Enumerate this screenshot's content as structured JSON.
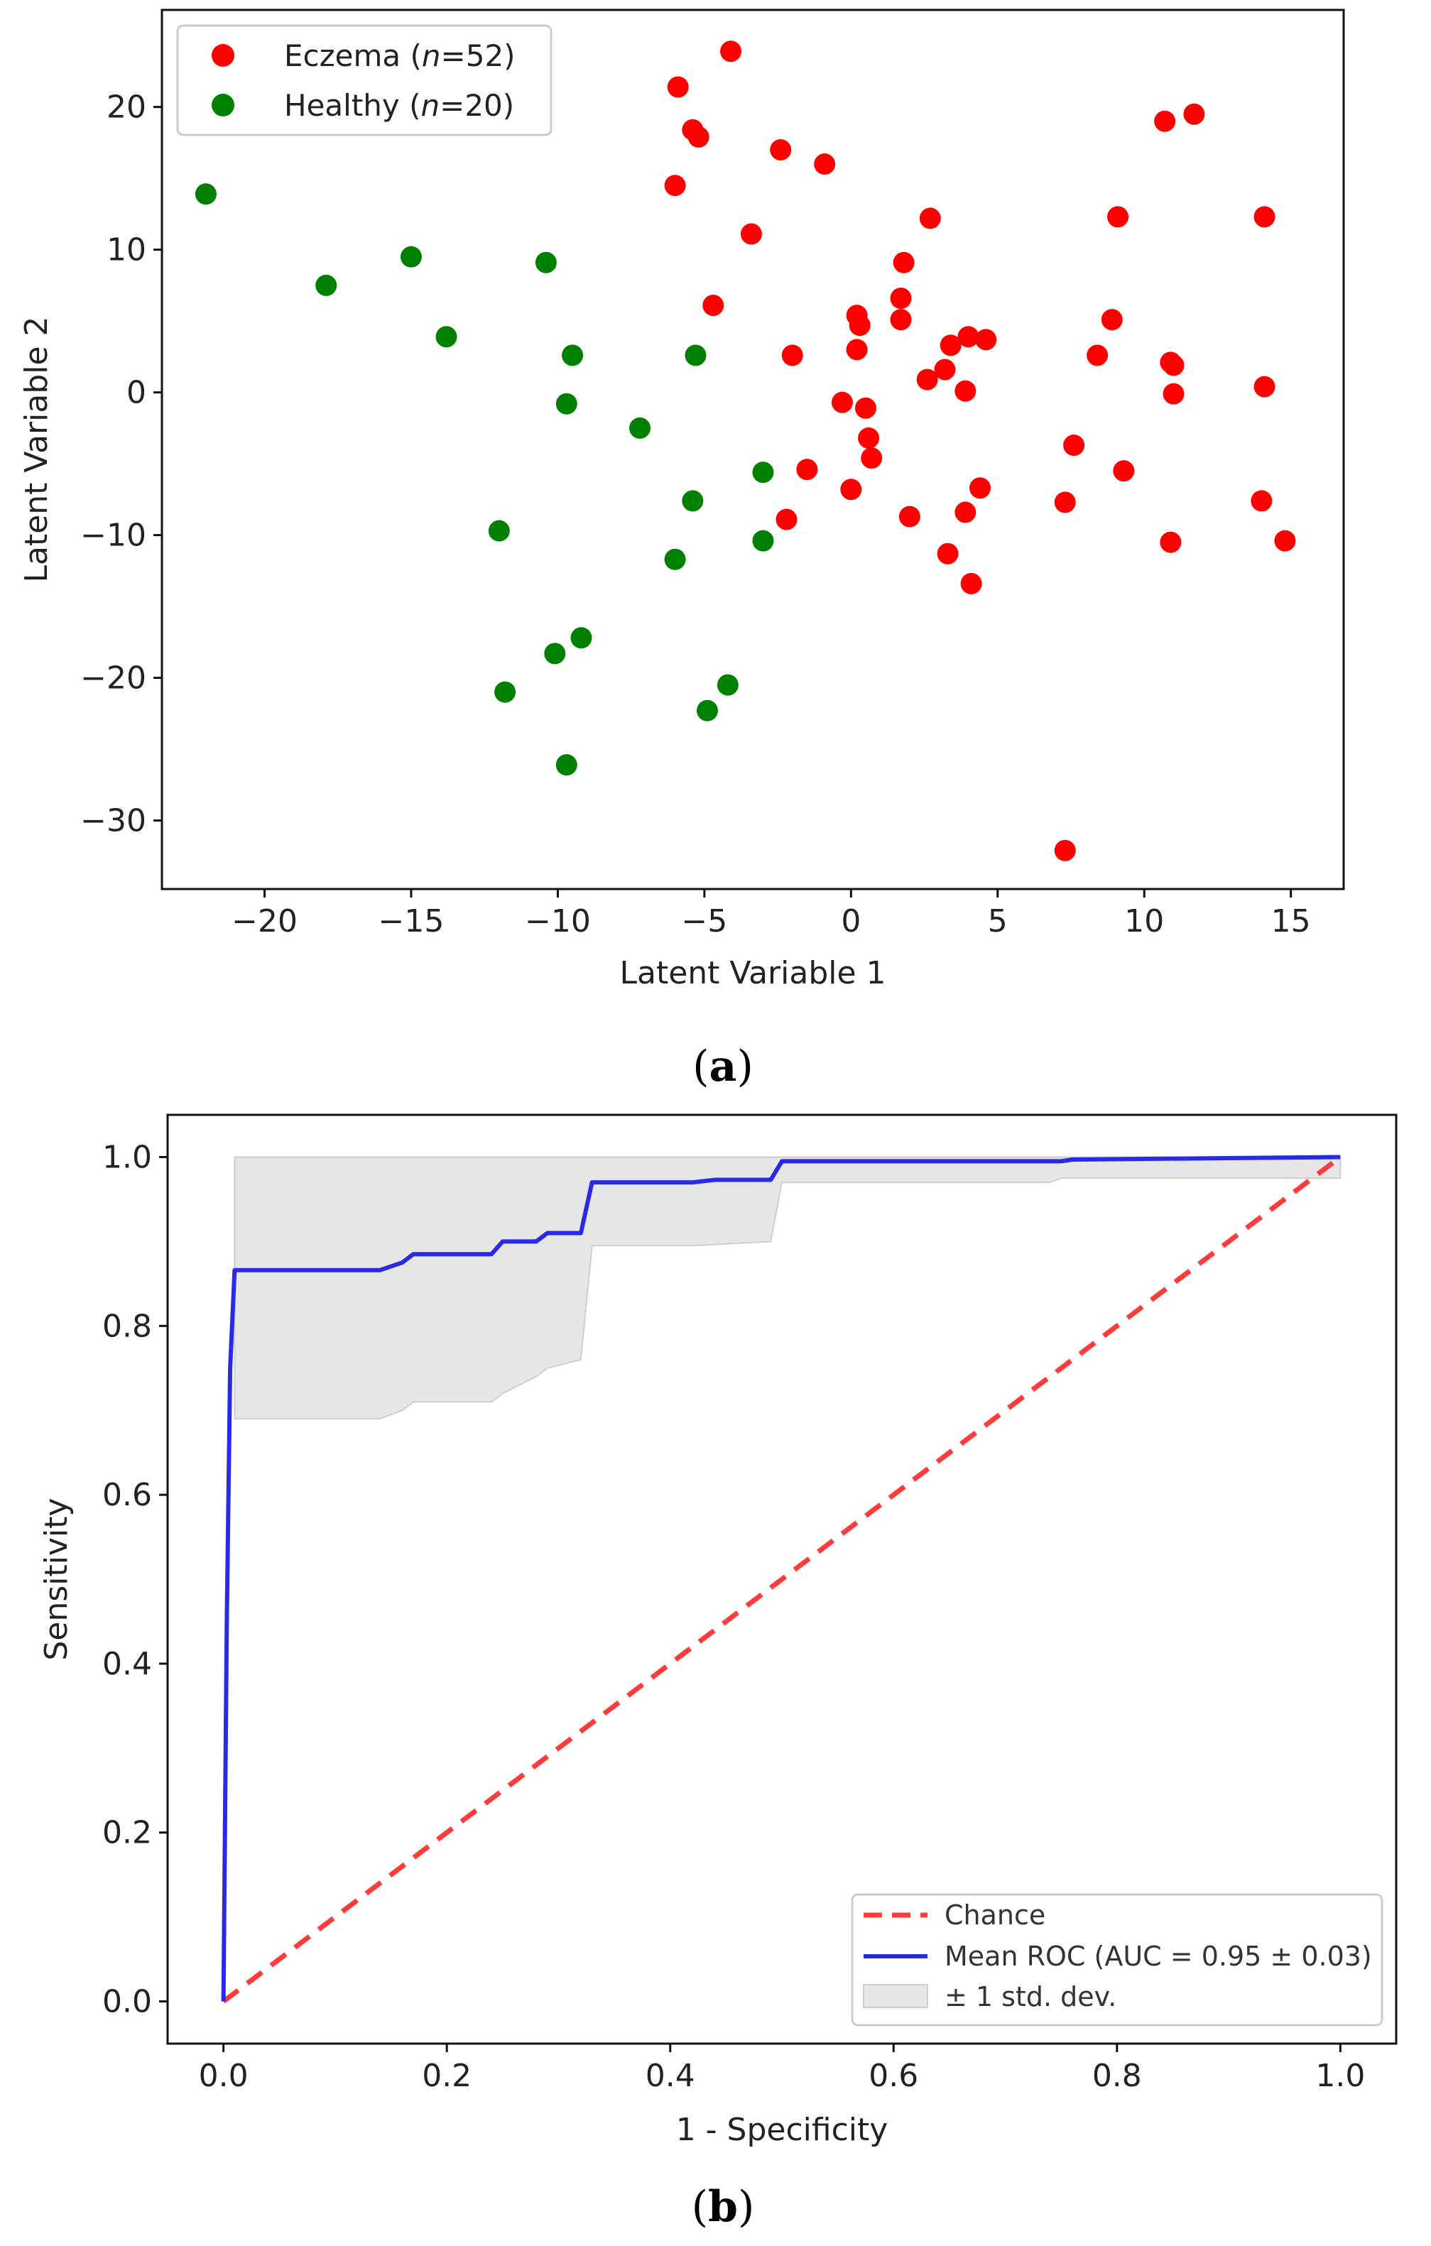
{
  "chart_data": [
    {
      "type": "scatter",
      "caption_letter": "a",
      "xlabel": "Latent Variable 1",
      "ylabel": "Latent Variable 2",
      "xlim": [
        -23.5,
        16.8
      ],
      "ylim": [
        -34.8,
        26.8
      ],
      "xticks": [
        -20,
        -15,
        -10,
        -5,
        0,
        5,
        10,
        15
      ],
      "yticks": [
        20,
        10,
        0,
        -10,
        -20,
        -30
      ],
      "legend_position": "top-left",
      "series": [
        {
          "name": "Eczema",
          "n_label": "n",
          "n_value": "=52",
          "color": "#ff0000",
          "points": [
            [
              -4.1,
              23.9
            ],
            [
              -5.9,
              21.4
            ],
            [
              -5.4,
              18.4
            ],
            [
              -5.2,
              17.9
            ],
            [
              -2.4,
              17.0
            ],
            [
              -0.9,
              16.0
            ],
            [
              -6.0,
              14.5
            ],
            [
              -3.4,
              11.1
            ],
            [
              -4.7,
              6.1
            ],
            [
              -2.0,
              2.6
            ],
            [
              2.7,
              12.2
            ],
            [
              1.8,
              9.1
            ],
            [
              1.7,
              6.6
            ],
            [
              0.2,
              5.4
            ],
            [
              0.3,
              4.7
            ],
            [
              1.7,
              5.1
            ],
            [
              3.4,
              3.3
            ],
            [
              4.0,
              3.9
            ],
            [
              4.6,
              3.7
            ],
            [
              0.2,
              3.0
            ],
            [
              3.2,
              1.6
            ],
            [
              2.6,
              0.9
            ],
            [
              3.9,
              0.1
            ],
            [
              -0.3,
              -0.7
            ],
            [
              0.5,
              -1.1
            ],
            [
              0.6,
              -3.2
            ],
            [
              0.7,
              -4.6
            ],
            [
              -1.5,
              -5.4
            ],
            [
              0.0,
              -6.8
            ],
            [
              -2.2,
              -8.9
            ],
            [
              2.0,
              -8.7
            ],
            [
              3.9,
              -8.4
            ],
            [
              4.4,
              -6.7
            ],
            [
              3.3,
              -11.3
            ],
            [
              4.1,
              -13.4
            ],
            [
              7.3,
              -7.7
            ],
            [
              7.6,
              -3.7
            ],
            [
              9.3,
              -5.5
            ],
            [
              8.4,
              2.6
            ],
            [
              8.9,
              5.1
            ],
            [
              9.1,
              12.3
            ],
            [
              10.7,
              19.0
            ],
            [
              11.7,
              19.5
            ],
            [
              10.9,
              2.1
            ],
            [
              11.0,
              1.9
            ],
            [
              11.0,
              -0.1
            ],
            [
              10.9,
              -10.5
            ],
            [
              14.1,
              12.3
            ],
            [
              14.1,
              0.4
            ],
            [
              14.0,
              -7.6
            ],
            [
              14.8,
              -10.4
            ],
            [
              7.3,
              -32.1
            ]
          ]
        },
        {
          "name": "Healthy",
          "n_label": "n",
          "n_value": "=20",
          "color": "#008000",
          "points": [
            [
              -22.0,
              13.9
            ],
            [
              -17.9,
              7.5
            ],
            [
              -15.0,
              9.5
            ],
            [
              -13.8,
              3.9
            ],
            [
              -10.4,
              9.1
            ],
            [
              -9.5,
              2.6
            ],
            [
              -9.7,
              -0.8
            ],
            [
              -7.2,
              -2.5
            ],
            [
              -5.3,
              2.6
            ],
            [
              -3.0,
              -5.6
            ],
            [
              -5.4,
              -7.6
            ],
            [
              -3.0,
              -10.4
            ],
            [
              -6.0,
              -11.7
            ],
            [
              -12.0,
              -9.7
            ],
            [
              -11.8,
              -21.0
            ],
            [
              -10.1,
              -18.3
            ],
            [
              -9.2,
              -17.2
            ],
            [
              -9.7,
              -26.1
            ],
            [
              -4.2,
              -20.5
            ],
            [
              -4.9,
              -22.3
            ]
          ]
        }
      ]
    },
    {
      "type": "line",
      "caption_letter": "b",
      "xlabel": "1 - Specificity",
      "ylabel": "Sensitivity",
      "xlim": [
        -0.05,
        1.05
      ],
      "ylim": [
        -0.05,
        1.05
      ],
      "xticks": [
        0.0,
        0.2,
        0.4,
        0.6,
        0.8,
        1.0
      ],
      "yticks": [
        0.0,
        0.2,
        0.4,
        0.6,
        0.8,
        1.0
      ],
      "legend_position": "bottom-right",
      "series": [
        {
          "name": "Chance",
          "color": "#ff3b3b",
          "style": "dashed",
          "x": [
            0.0,
            1.0
          ],
          "y": [
            0.0,
            1.0
          ]
        },
        {
          "name": "Mean ROC (AUC = 0.95 ± 0.03)",
          "color": "#2a2ae6",
          "style": "solid",
          "x": [
            0.0,
            0.003,
            0.006,
            0.01,
            0.14,
            0.16,
            0.17,
            0.24,
            0.25,
            0.28,
            0.29,
            0.32,
            0.33,
            0.42,
            0.44,
            0.49,
            0.5,
            0.75,
            0.76,
            1.0
          ],
          "y": [
            0.0,
            0.45,
            0.75,
            0.866,
            0.866,
            0.875,
            0.885,
            0.885,
            0.9,
            0.9,
            0.91,
            0.91,
            0.97,
            0.97,
            0.973,
            0.973,
            0.995,
            0.995,
            0.997,
            1.0
          ]
        },
        {
          "name": "± 1 std. dev.",
          "color": "#e6e6e6",
          "style": "band",
          "x": [
            0.01,
            0.14,
            0.16,
            0.17,
            0.24,
            0.25,
            0.28,
            0.29,
            0.32,
            0.33,
            0.42,
            0.49,
            0.5,
            0.74,
            0.75,
            1.0
          ],
          "lower": [
            0.69,
            0.69,
            0.7,
            0.71,
            0.71,
            0.72,
            0.74,
            0.75,
            0.76,
            0.895,
            0.895,
            0.9,
            0.97,
            0.97,
            0.975,
            0.975
          ],
          "upper": [
            1.0,
            1.0,
            1.0,
            1.0,
            1.0,
            1.0,
            1.0,
            1.0,
            1.0,
            1.0,
            1.0,
            1.0,
            1.0,
            1.0,
            1.0,
            1.0
          ]
        }
      ]
    }
  ]
}
